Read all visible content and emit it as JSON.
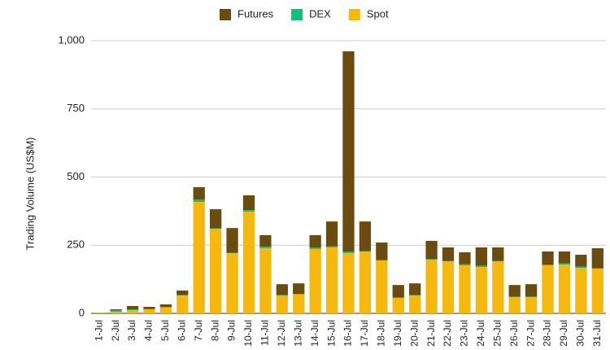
{
  "chart_data": {
    "type": "stacked_bar",
    "y_label": "Trading Volume (US$M)",
    "categories": [
      "1-Jul",
      "2-Jul",
      "3-Jul",
      "4-Jul",
      "5-Jul",
      "6-Jul",
      "7-Jul",
      "8-Jul",
      "9-Jul",
      "10-Jul",
      "11-Jul",
      "12-Jul",
      "13-Jul",
      "14-Jul",
      "15-Jul",
      "16-Jul",
      "17-Jul",
      "18-Jul",
      "19-Jul",
      "20-Jul",
      "21-Jul",
      "22-Jul",
      "23-Jul",
      "24-Jul",
      "25-Jul",
      "26-Jul",
      "27-Jul",
      "28-Jul",
      "29-Jul",
      "30-Jul",
      "31-Jul"
    ],
    "series": [
      {
        "name": "Futures",
        "color": "#6b4c10",
        "values": [
          0,
          4,
          12,
          8,
          10,
          17,
          46,
          70,
          91,
          54,
          43,
          40,
          39,
          46,
          91,
          735,
          109,
          65,
          46,
          43,
          67,
          50,
          44,
          67,
          50,
          43,
          46,
          48,
          44,
          44,
          74
        ]
      },
      {
        "name": "DEX",
        "color": "#12c07c",
        "values": [
          1,
          5,
          3,
          1,
          1,
          1,
          8,
          2,
          1,
          6,
          5,
          1,
          1,
          5,
          4,
          5,
          1,
          1,
          1,
          1,
          2,
          1,
          4,
          5,
          1,
          1,
          1,
          3,
          4,
          4,
          1
        ]
      },
      {
        "name": "Spot",
        "color": "#f4b80f",
        "values": [
          2,
          6,
          12,
          15,
          22,
          66,
          409,
          310,
          221,
          373,
          239,
          66,
          70,
          236,
          242,
          221,
          227,
          194,
          57,
          66,
          197,
          191,
          176,
          170,
          191,
          60,
          60,
          176,
          179,
          167,
          164
        ]
      }
    ],
    "ylim": [
      0,
      1000
    ],
    "yticks": [
      0,
      250,
      500,
      750,
      {
        "value": 1000,
        "label": "1,000"
      }
    ],
    "grid": true,
    "legend": "top"
  }
}
